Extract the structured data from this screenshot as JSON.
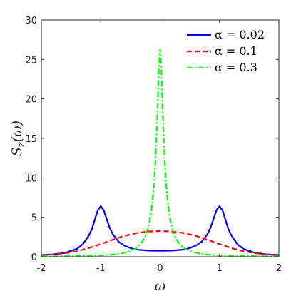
{
  "chart_data": {
    "type": "line",
    "title": "",
    "xlabel": "ω",
    "ylabel": "S_z(ω)",
    "ylabel_main": "S",
    "ylabel_sub": "z",
    "ylabel_arg": "(ω)",
    "xlim": [
      -2,
      2
    ],
    "ylim": [
      0,
      30
    ],
    "xticks": [
      -2,
      -1,
      0,
      1,
      2
    ],
    "xtick_labels": [
      "-2",
      "-1",
      "0",
      "1",
      "2"
    ],
    "yticks": [
      0,
      5,
      10,
      15,
      20,
      25,
      30
    ],
    "ytick_labels": [
      "0",
      "5",
      "10",
      "15",
      "20",
      "25",
      "30"
    ],
    "grid": false,
    "legend_position": "top-right",
    "series": [
      {
        "name": "α = 0.02",
        "color": "#0000ff",
        "style": "solid",
        "x": [
          -2,
          -1.8,
          -1.6,
          -1.4,
          -1.3,
          -1.2,
          -1.15,
          -1.1,
          -1.05,
          -1.0,
          -0.95,
          -0.9,
          -0.85,
          -0.8,
          -0.7,
          -0.6,
          -0.5,
          -0.4,
          -0.2,
          0,
          0.2,
          0.4,
          0.5,
          0.6,
          0.7,
          0.8,
          0.85,
          0.9,
          0.95,
          1.0,
          1.05,
          1.1,
          1.15,
          1.2,
          1.3,
          1.4,
          1.6,
          1.8,
          2
        ],
        "y": [
          0.22,
          0.3,
          0.5,
          1.0,
          1.6,
          2.7,
          3.5,
          4.7,
          5.9,
          6.4,
          5.9,
          4.8,
          3.7,
          2.9,
          1.9,
          1.4,
          1.1,
          0.9,
          0.78,
          0.75,
          0.78,
          0.9,
          1.1,
          1.4,
          1.9,
          2.9,
          3.7,
          4.8,
          5.9,
          6.4,
          5.9,
          4.7,
          3.5,
          2.7,
          1.6,
          1.0,
          0.5,
          0.3,
          0.22
        ]
      },
      {
        "name": "α = 0.1",
        "color": "#ff0000",
        "style": "dashed",
        "x": [
          -2,
          -1.8,
          -1.6,
          -1.4,
          -1.2,
          -1.0,
          -0.8,
          -0.6,
          -0.4,
          -0.2,
          0,
          0.2,
          0.4,
          0.6,
          0.8,
          1.0,
          1.2,
          1.4,
          1.6,
          1.8,
          2
        ],
        "y": [
          0.2,
          0.3,
          0.45,
          0.7,
          1.1,
          1.6,
          2.15,
          2.65,
          3.0,
          3.2,
          3.25,
          3.2,
          3.0,
          2.65,
          2.15,
          1.6,
          1.1,
          0.7,
          0.45,
          0.3,
          0.2
        ]
      },
      {
        "name": "α = 0.3",
        "color": "#00ff00",
        "style": "dashdot",
        "x": [
          -2,
          -1.6,
          -1.2,
          -0.9,
          -0.7,
          -0.5,
          -0.4,
          -0.3,
          -0.25,
          -0.2,
          -0.15,
          -0.12,
          -0.1,
          -0.08,
          -0.06,
          -0.04,
          -0.02,
          0,
          0.02,
          0.04,
          0.06,
          0.08,
          0.1,
          0.12,
          0.15,
          0.2,
          0.25,
          0.3,
          0.4,
          0.5,
          0.7,
          0.9,
          1.2,
          1.6,
          2
        ],
        "y": [
          0.05,
          0.07,
          0.12,
          0.2,
          0.35,
          0.7,
          1.1,
          1.9,
          2.6,
          3.7,
          5.6,
          7.6,
          9.4,
          11.9,
          15.2,
          19.3,
          23.9,
          26.3,
          23.9,
          19.3,
          15.2,
          11.9,
          9.4,
          7.6,
          5.6,
          3.7,
          2.6,
          1.9,
          1.1,
          0.7,
          0.35,
          0.2,
          0.12,
          0.07,
          0.05
        ]
      }
    ]
  }
}
